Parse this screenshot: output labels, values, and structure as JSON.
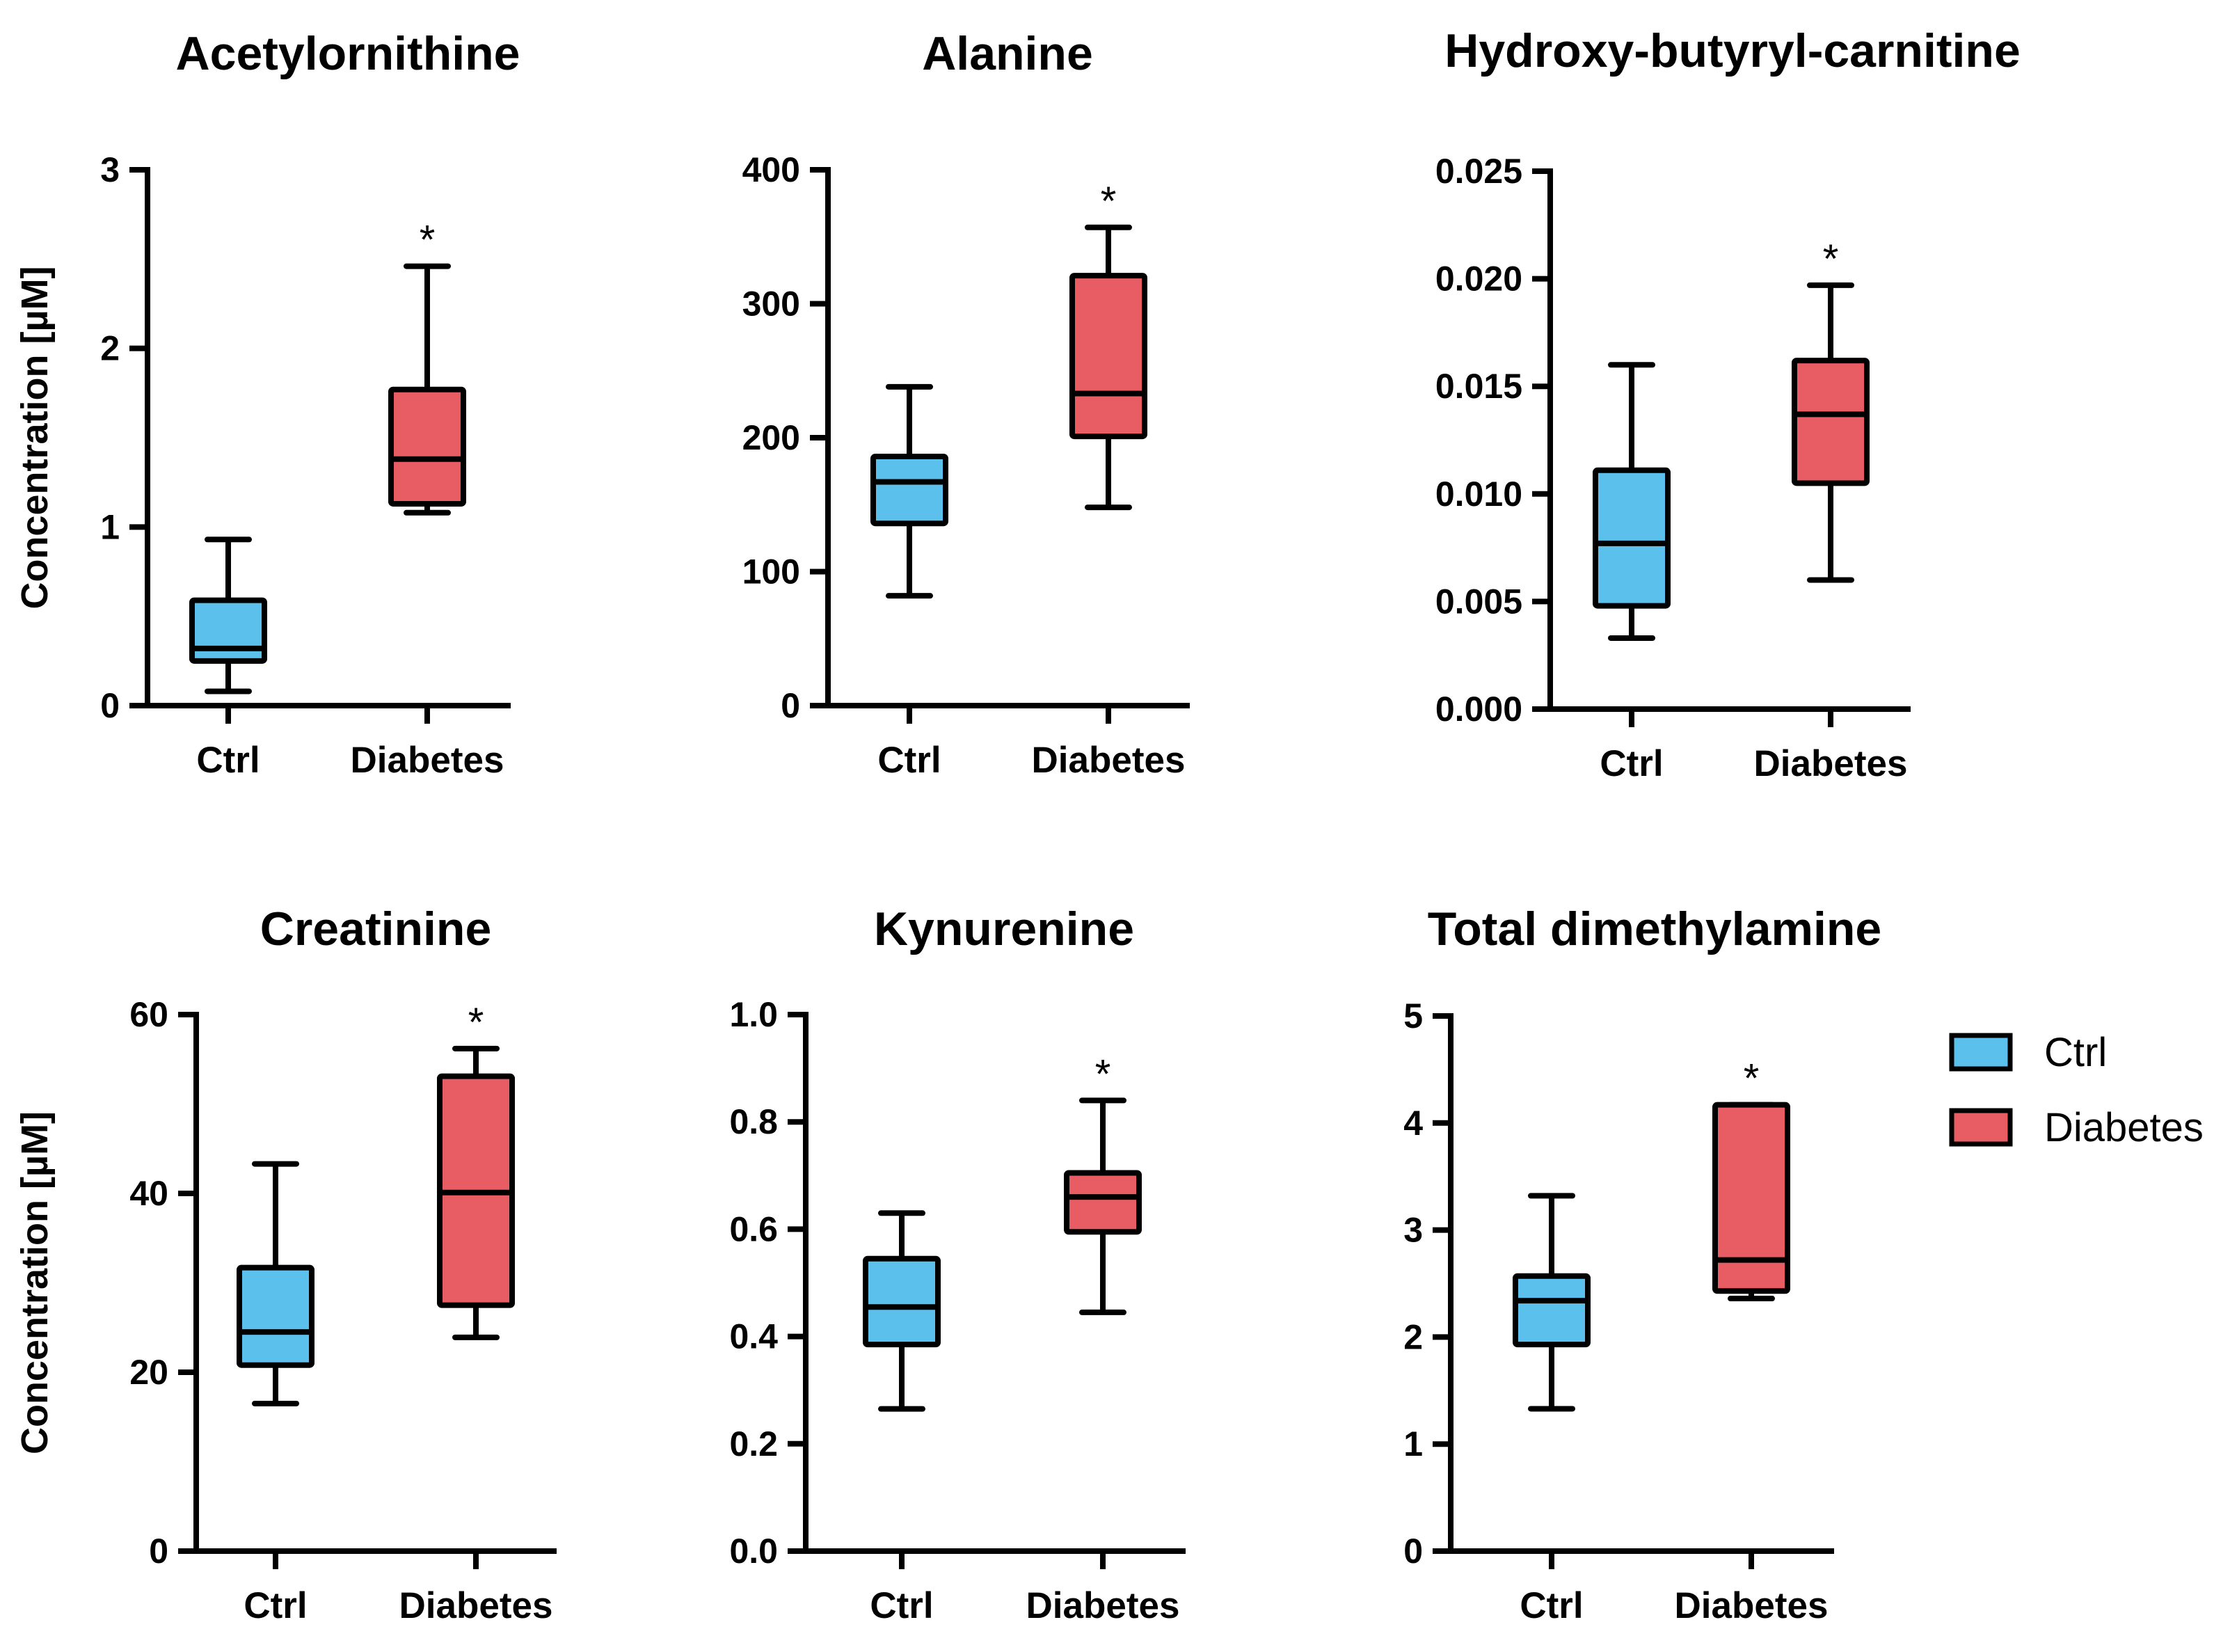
{
  "chart_data": [
    {
      "type": "boxplot",
      "title": "Acetylornithine",
      "ylabel": "Concentration [µM]",
      "categories": [
        "Ctrl",
        "Diabetes"
      ],
      "ylim": [
        0,
        3
      ],
      "yticks": [
        "0",
        "1",
        "2",
        "3"
      ],
      "series": [
        {
          "name": "Ctrl",
          "min": 0.08,
          "q1": 0.25,
          "median": 0.32,
          "q3": 0.59,
          "max": 0.93
        },
        {
          "name": "Diabetes",
          "min": 1.08,
          "q1": 1.13,
          "median": 1.38,
          "q3": 1.77,
          "max": 2.46,
          "significance": "*"
        }
      ]
    },
    {
      "type": "boxplot",
      "title": "Alanine",
      "ylabel": "",
      "categories": [
        "Ctrl",
        "Diabetes"
      ],
      "ylim": [
        0,
        400
      ],
      "yticks": [
        "0",
        "100",
        "200",
        "300",
        "400"
      ],
      "series": [
        {
          "name": "Ctrl",
          "min": 82,
          "q1": 136,
          "median": 167,
          "q3": 186,
          "max": 238
        },
        {
          "name": "Diabetes",
          "min": 148,
          "q1": 201,
          "median": 233,
          "q3": 321,
          "max": 357,
          "significance": "*"
        }
      ]
    },
    {
      "type": "boxplot",
      "title": "Hydroxy-butyryl-carnitine",
      "ylabel": "",
      "categories": [
        "Ctrl",
        "Diabetes"
      ],
      "ylim": [
        0,
        0.025
      ],
      "yticks": [
        "0.000",
        "0.005",
        "0.010",
        "0.015",
        "0.020",
        "0.025"
      ],
      "series": [
        {
          "name": "Ctrl",
          "min": 0.0033,
          "q1": 0.0048,
          "median": 0.0077,
          "q3": 0.0111,
          "max": 0.016
        },
        {
          "name": "Diabetes",
          "min": 0.006,
          "q1": 0.0105,
          "median": 0.0137,
          "q3": 0.0162,
          "max": 0.0197,
          "significance": "*"
        }
      ]
    },
    {
      "type": "boxplot",
      "title": "Creatinine",
      "ylabel": "Concentration [µM]",
      "categories": [
        "Ctrl",
        "Diabetes"
      ],
      "ylim": [
        0,
        60
      ],
      "yticks": [
        "0",
        "20",
        "40",
        "60"
      ],
      "series": [
        {
          "name": "Ctrl",
          "min": 16.5,
          "q1": 20.8,
          "median": 24.5,
          "q3": 31.7,
          "max": 43.3
        },
        {
          "name": "Diabetes",
          "min": 23.9,
          "q1": 27.5,
          "median": 40.1,
          "q3": 53.1,
          "max": 56.2,
          "significance": "*"
        }
      ]
    },
    {
      "type": "boxplot",
      "title": "Kynurenine",
      "ylabel": "",
      "categories": [
        "Ctrl",
        "Diabetes"
      ],
      "ylim": [
        0,
        1.0
      ],
      "yticks": [
        "0.0",
        "0.2",
        "0.4",
        "0.6",
        "0.8",
        "1.0"
      ],
      "series": [
        {
          "name": "Ctrl",
          "min": 0.265,
          "q1": 0.385,
          "median": 0.455,
          "q3": 0.545,
          "max": 0.63
        },
        {
          "name": "Diabetes",
          "min": 0.445,
          "q1": 0.595,
          "median": 0.66,
          "q3": 0.705,
          "max": 0.84,
          "significance": "*"
        }
      ]
    },
    {
      "type": "boxplot",
      "title": "Total dimethylamine",
      "ylabel": "",
      "categories": [
        "Ctrl",
        "Diabetes"
      ],
      "ylim": [
        0,
        5
      ],
      "yticks": [
        "0",
        "1",
        "2",
        "3",
        "4",
        "5"
      ],
      "series": [
        {
          "name": "Ctrl",
          "min": 1.33,
          "q1": 1.93,
          "median": 2.34,
          "q3": 2.57,
          "max": 3.32
        },
        {
          "name": "Diabetes",
          "min": 2.36,
          "q1": 2.43,
          "median": 2.72,
          "q3": 4.17,
          "max": 4.17,
          "significance": "*"
        }
      ]
    }
  ],
  "legend": {
    "items": [
      {
        "label": "Ctrl",
        "color": "#5bc0eb"
      },
      {
        "label": "Diabetes",
        "color": "#e85c63"
      }
    ]
  },
  "colors": {
    "ctrl": "#5bc0eb",
    "diabetes": "#e85c63",
    "line": "#000000"
  }
}
